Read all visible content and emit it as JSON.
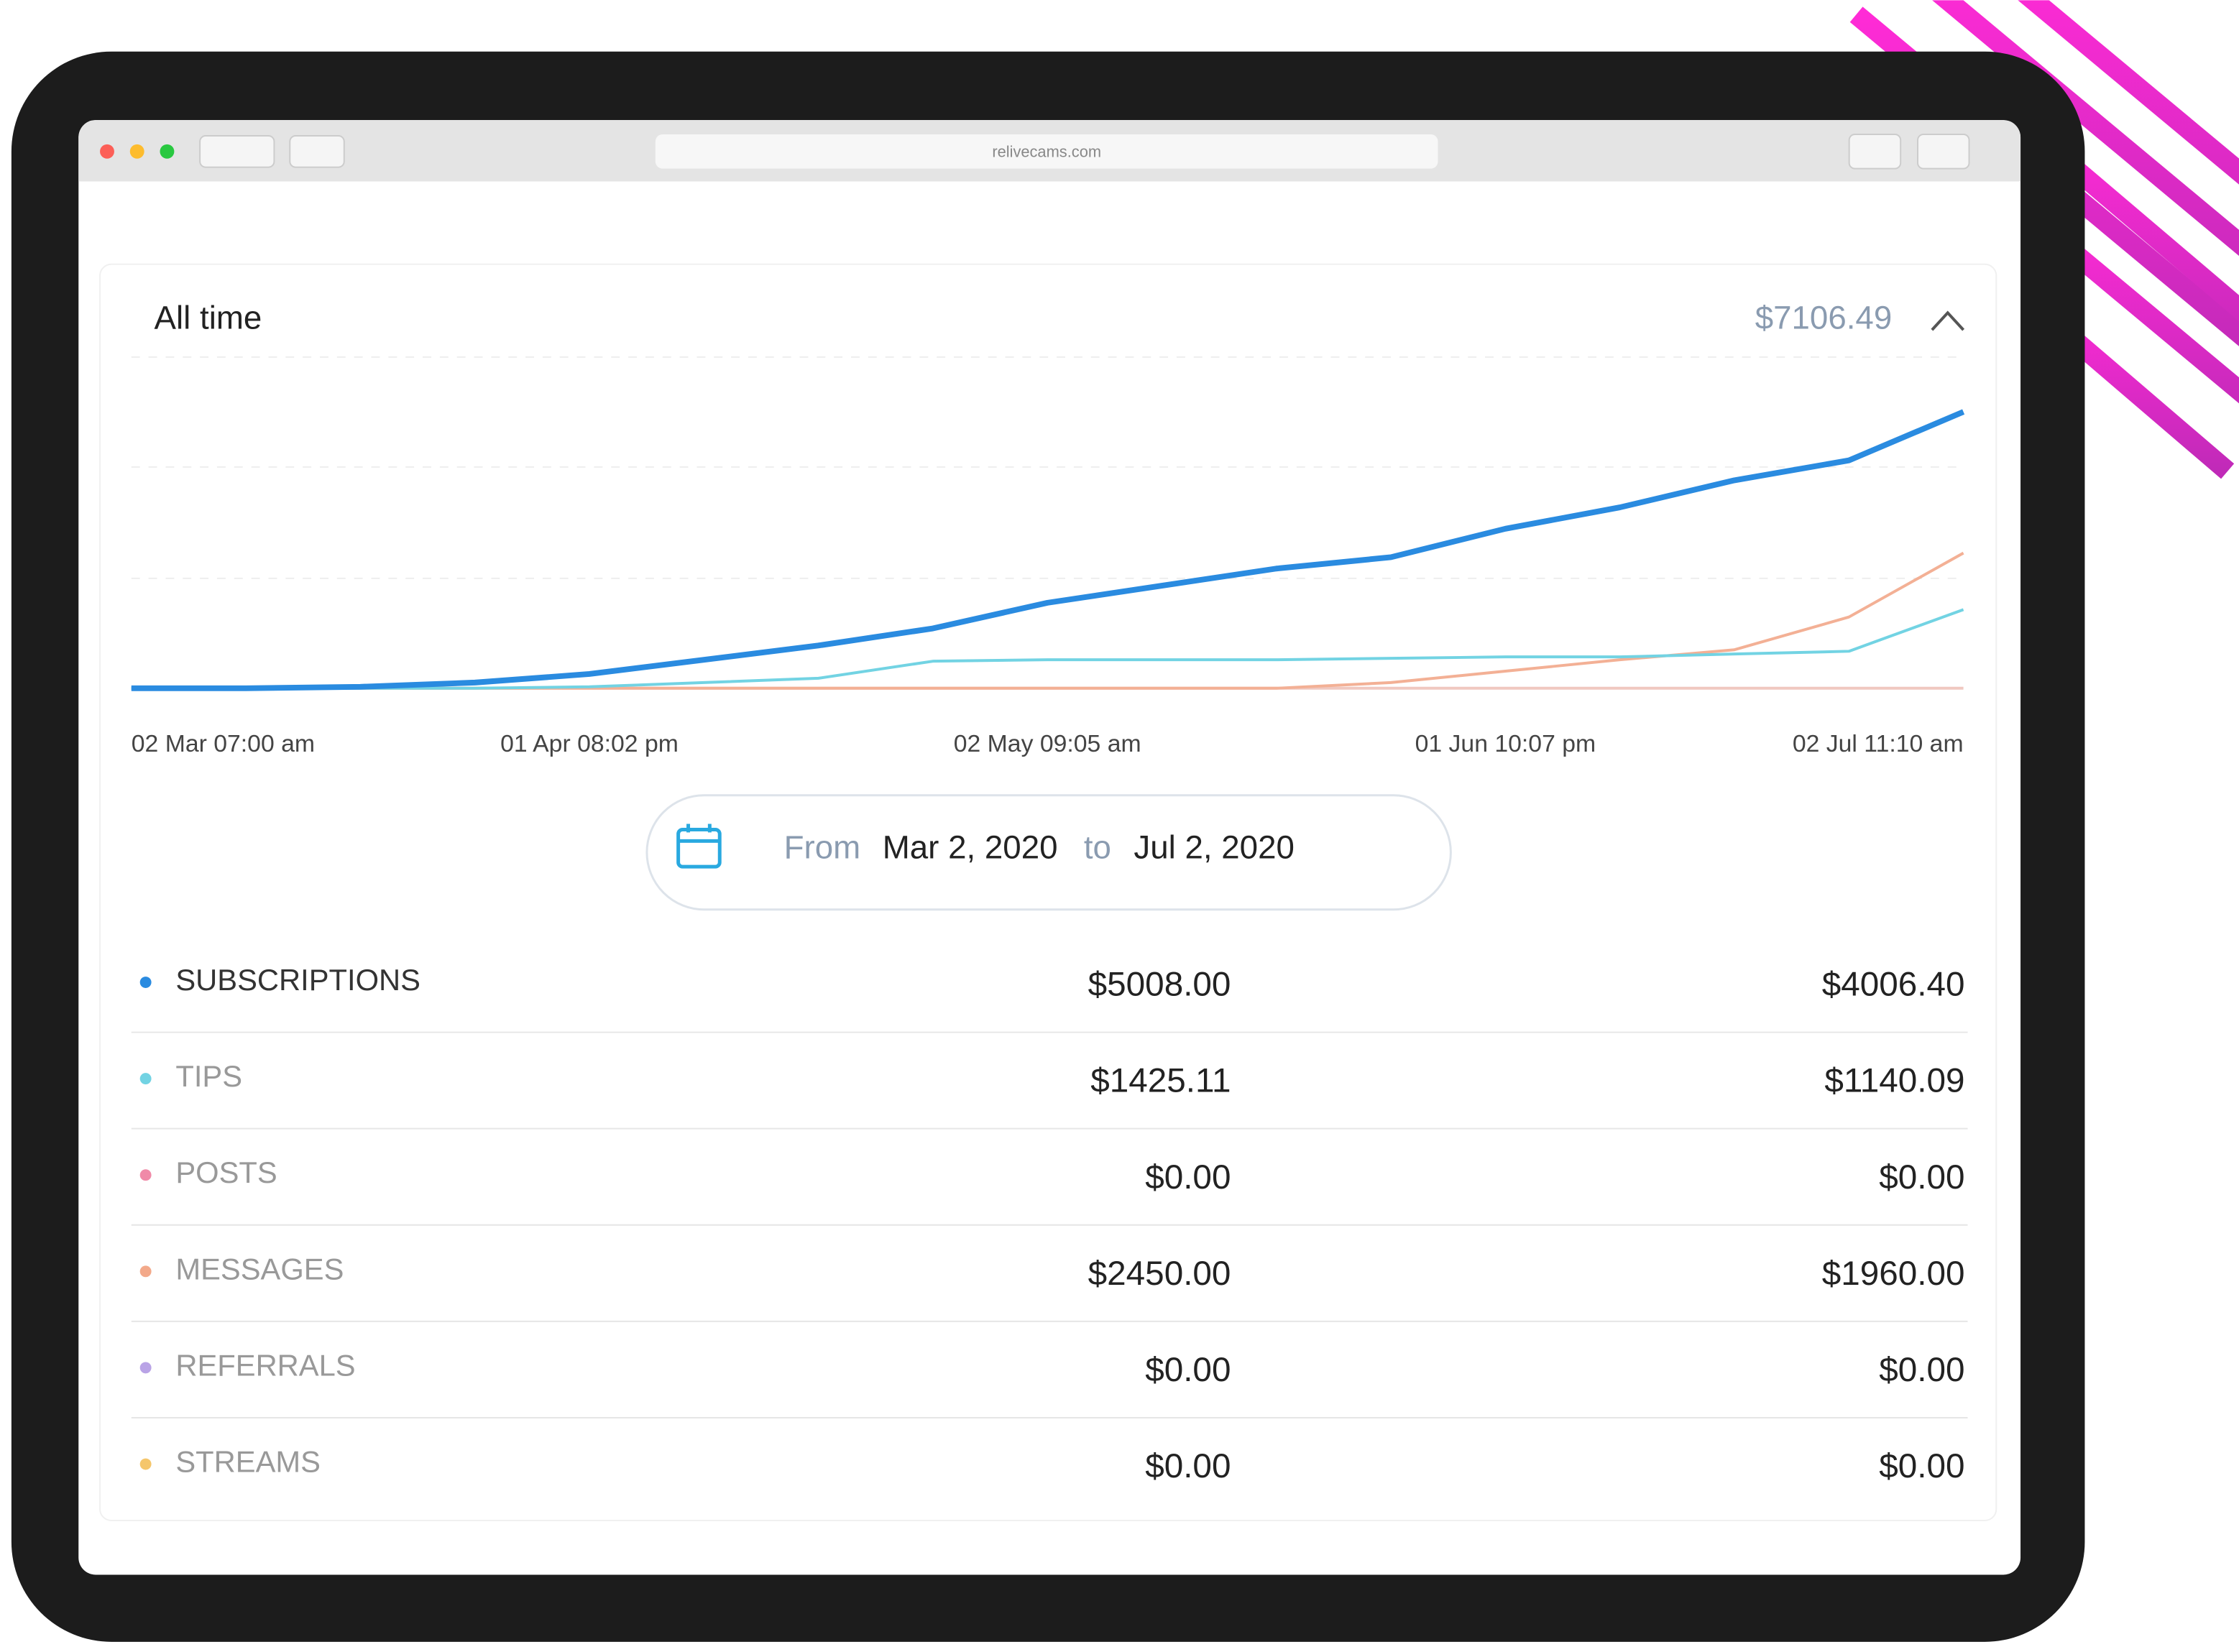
{
  "browser": {
    "url": "relivecams.com"
  },
  "header": {
    "title": "All time",
    "total": "$7106.49"
  },
  "chart_data": {
    "type": "line",
    "x_labels": [
      "02 Mar 07:00 am",
      "01 Apr 08:02 pm",
      "02 May 09:05 am",
      "01 Jun 10:07 pm",
      "02 Jul 11:10 am"
    ],
    "ylim": [
      0,
      6000
    ],
    "series": [
      {
        "name": "SUBSCRIPTIONS",
        "color": "#2a8be0",
        "values": [
          0,
          0,
          26,
          103,
          258,
          516,
          774,
          1084,
          1548,
          1858,
          2168,
          2374,
          2890,
          3277,
          3767,
          4128,
          5008
        ]
      },
      {
        "name": "TIPS",
        "color": "#72d3e3",
        "values": [
          0,
          0,
          0,
          0,
          26,
          103,
          181,
          490,
          516,
          516,
          516,
          542,
          568,
          568,
          620,
          670,
          1425
        ]
      },
      {
        "name": "MESSAGES",
        "color": "#f3b095",
        "values": [
          0,
          0,
          0,
          0,
          0,
          0,
          0,
          0,
          0,
          0,
          0,
          103,
          310,
          516,
          697,
          1290,
          2450
        ]
      }
    ]
  },
  "date_range": {
    "from_label": "From",
    "from": "Mar 2, 2020",
    "to_label": "to",
    "to": "Jul 2, 2020"
  },
  "table": {
    "rows": [
      {
        "name": "SUBSCRIPTIONS",
        "color": "#2a8be0",
        "total": "$5008.00",
        "net": "$4006.40"
      },
      {
        "name": "TIPS",
        "color": "#72d3e3",
        "total": "$1425.11",
        "net": "$1140.09"
      },
      {
        "name": "POSTS",
        "color": "#f08aa8",
        "total": "$0.00",
        "net": "$0.00"
      },
      {
        "name": "MESSAGES",
        "color": "#f3a98a",
        "total": "$2450.00",
        "net": "$1960.00"
      },
      {
        "name": "REFERRALS",
        "color": "#b9a3e6",
        "total": "$0.00",
        "net": "$0.00"
      },
      {
        "name": "STREAMS",
        "color": "#f5c66b",
        "total": "$0.00",
        "net": "$0.00"
      }
    ]
  }
}
